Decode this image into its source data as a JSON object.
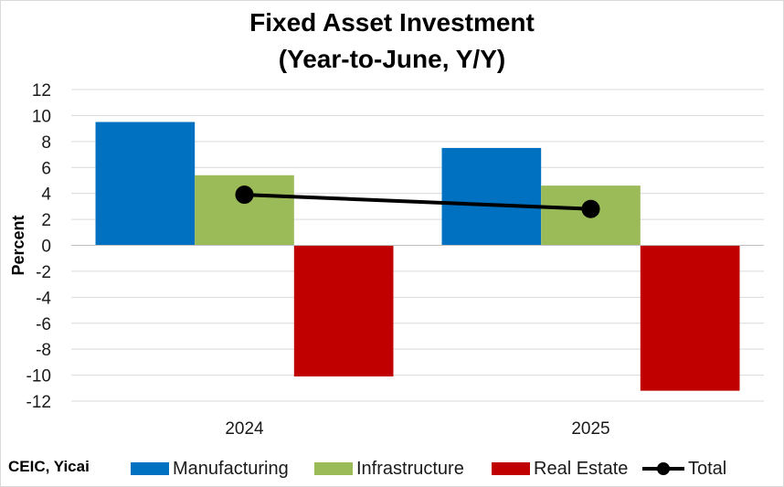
{
  "chart_data": {
    "type": "bar",
    "title_line1": "Fixed Asset Investment",
    "title_line2": "(Year-to-June, Y/Y)",
    "ylabel": "Percent",
    "xlabel": "",
    "categories": [
      "2024",
      "2025"
    ],
    "ylim": [
      -12,
      12
    ],
    "yticks": [
      "12",
      "10",
      "8",
      "6",
      "4",
      "2",
      "0",
      "-2",
      "-4",
      "-6",
      "-8",
      "-10",
      "-12"
    ],
    "series": [
      {
        "name": "Manufacturing",
        "type": "bar",
        "color": "#0070C0",
        "values": [
          9.5,
          7.5
        ]
      },
      {
        "name": "Infrastructure",
        "type": "bar",
        "color": "#9BBB59",
        "values": [
          5.4,
          4.6
        ]
      },
      {
        "name": "Real Estate",
        "type": "bar",
        "color": "#C00000",
        "values": [
          -10.1,
          -11.2
        ]
      },
      {
        "name": "Total",
        "type": "line",
        "color": "#000000",
        "values": [
          3.9,
          2.8
        ]
      }
    ],
    "grid": true,
    "legend_position": "bottom"
  },
  "source": "CEIC, Yicai",
  "legend": {
    "manufacturing": "Manufacturing",
    "infrastructure": "Infrastructure",
    "real_estate": "Real Estate",
    "total": "Total"
  }
}
